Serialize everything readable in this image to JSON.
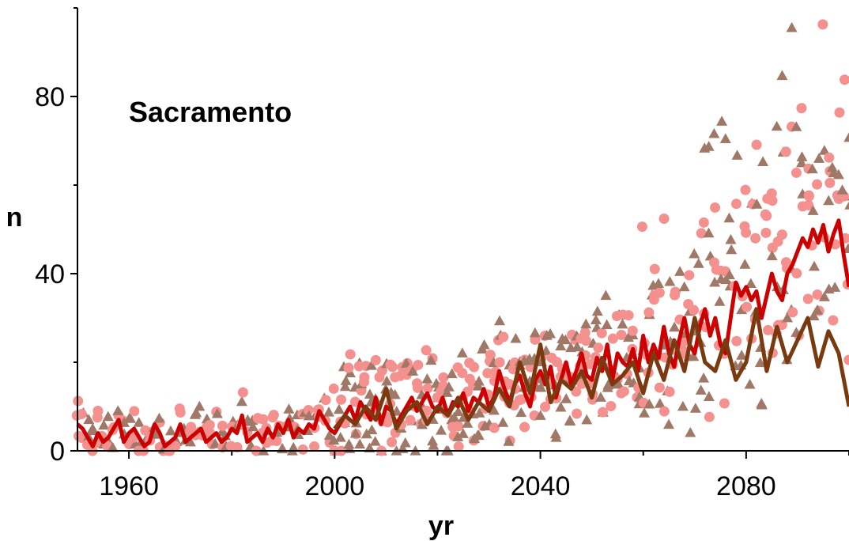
{
  "chart_data": {
    "type": "scatter",
    "title": "Sacramento",
    "xlabel": "yr",
    "ylabel": "n",
    "xlim": [
      1950,
      2100
    ],
    "ylim": [
      0,
      100
    ],
    "x_ticks": [
      1960,
      2000,
      2040,
      2080
    ],
    "y_ticks": [
      0,
      40,
      80
    ],
    "grid": false,
    "colors": {
      "scatter_pink": "#f4908e",
      "scatter_brown": "#a07868",
      "line_red": "#cc0000",
      "line_brown": "#7a3a10"
    },
    "series": [
      {
        "kind": "line",
        "color_key": "line_red",
        "points": [
          [
            1950,
            6
          ],
          [
            1951,
            5
          ],
          [
            1952,
            3
          ],
          [
            1953,
            1
          ],
          [
            1954,
            4
          ],
          [
            1955,
            2
          ],
          [
            1956,
            3
          ],
          [
            1957,
            5
          ],
          [
            1958,
            7
          ],
          [
            1959,
            2
          ],
          [
            1960,
            4
          ],
          [
            1961,
            5
          ],
          [
            1962,
            3
          ],
          [
            1963,
            1
          ],
          [
            1964,
            2
          ],
          [
            1965,
            6
          ],
          [
            1966,
            4
          ],
          [
            1967,
            1
          ],
          [
            1968,
            2
          ],
          [
            1969,
            3
          ],
          [
            1970,
            6
          ],
          [
            1971,
            2
          ],
          [
            1972,
            3
          ],
          [
            1973,
            4
          ],
          [
            1974,
            5
          ],
          [
            1975,
            2
          ],
          [
            1976,
            3
          ],
          [
            1977,
            4
          ],
          [
            1978,
            2
          ],
          [
            1979,
            3
          ],
          [
            1980,
            5
          ],
          [
            1981,
            4
          ],
          [
            1982,
            8
          ],
          [
            1983,
            2
          ],
          [
            1984,
            3
          ],
          [
            1985,
            4
          ],
          [
            1986,
            2
          ],
          [
            1987,
            5
          ],
          [
            1988,
            3
          ],
          [
            1989,
            6
          ],
          [
            1990,
            4
          ],
          [
            1991,
            7
          ],
          [
            1992,
            3
          ],
          [
            1993,
            5
          ],
          [
            1994,
            4
          ],
          [
            1995,
            6
          ],
          [
            1996,
            5
          ],
          [
            1997,
            9
          ],
          [
            1998,
            7
          ],
          [
            1999,
            5
          ],
          [
            2000,
            4
          ],
          [
            2001,
            6
          ],
          [
            2002,
            8
          ],
          [
            2003,
            10
          ],
          [
            2004,
            7
          ],
          [
            2005,
            11
          ],
          [
            2006,
            9
          ],
          [
            2007,
            7
          ],
          [
            2008,
            12
          ],
          [
            2009,
            6
          ],
          [
            2010,
            10
          ],
          [
            2011,
            9
          ],
          [
            2012,
            6
          ],
          [
            2013,
            8
          ],
          [
            2014,
            10
          ],
          [
            2015,
            12
          ],
          [
            2016,
            9
          ],
          [
            2017,
            11
          ],
          [
            2018,
            13
          ],
          [
            2019,
            10
          ],
          [
            2020,
            9
          ],
          [
            2021,
            12
          ],
          [
            2022,
            8
          ],
          [
            2023,
            11
          ],
          [
            2024,
            10
          ],
          [
            2025,
            13
          ],
          [
            2026,
            9
          ],
          [
            2027,
            12
          ],
          [
            2028,
            11
          ],
          [
            2029,
            14
          ],
          [
            2030,
            10
          ],
          [
            2031,
            12
          ],
          [
            2032,
            18
          ],
          [
            2033,
            14
          ],
          [
            2034,
            11
          ],
          [
            2035,
            15
          ],
          [
            2036,
            17
          ],
          [
            2037,
            13
          ],
          [
            2038,
            10
          ],
          [
            2039,
            16
          ],
          [
            2040,
            18
          ],
          [
            2041,
            15
          ],
          [
            2042,
            19
          ],
          [
            2043,
            12
          ],
          [
            2044,
            16
          ],
          [
            2045,
            20
          ],
          [
            2046,
            15
          ],
          [
            2047,
            18
          ],
          [
            2048,
            22
          ],
          [
            2049,
            17
          ],
          [
            2050,
            16
          ],
          [
            2051,
            21
          ],
          [
            2052,
            18
          ],
          [
            2053,
            24
          ],
          [
            2054,
            16
          ],
          [
            2055,
            22
          ],
          [
            2056,
            20
          ],
          [
            2057,
            19
          ],
          [
            2058,
            23
          ],
          [
            2059,
            18
          ],
          [
            2060,
            26
          ],
          [
            2061,
            20
          ],
          [
            2062,
            24
          ],
          [
            2063,
            21
          ],
          [
            2064,
            28
          ],
          [
            2065,
            22
          ],
          [
            2066,
            19
          ],
          [
            2067,
            25
          ],
          [
            2068,
            30
          ],
          [
            2069,
            24
          ],
          [
            2070,
            22
          ],
          [
            2071,
            28
          ],
          [
            2072,
            32
          ],
          [
            2073,
            26
          ],
          [
            2074,
            30
          ],
          [
            2075,
            24
          ],
          [
            2076,
            22
          ],
          [
            2077,
            30
          ],
          [
            2078,
            38
          ],
          [
            2079,
            35
          ],
          [
            2080,
            37
          ],
          [
            2081,
            34
          ],
          [
            2082,
            36
          ],
          [
            2083,
            30
          ],
          [
            2084,
            35
          ],
          [
            2085,
            40
          ],
          [
            2086,
            36
          ],
          [
            2087,
            34
          ],
          [
            2088,
            40
          ],
          [
            2089,
            42
          ],
          [
            2090,
            45
          ],
          [
            2091,
            48
          ],
          [
            2092,
            46
          ],
          [
            2093,
            50
          ],
          [
            2094,
            47
          ],
          [
            2095,
            51
          ],
          [
            2096,
            45
          ],
          [
            2097,
            49
          ],
          [
            2098,
            52
          ],
          [
            2099,
            44
          ],
          [
            2100,
            37
          ]
        ]
      },
      {
        "kind": "line",
        "color_key": "line_brown",
        "points": [
          [
            2000,
            5
          ],
          [
            2002,
            8
          ],
          [
            2004,
            6
          ],
          [
            2006,
            10
          ],
          [
            2008,
            7
          ],
          [
            2010,
            14
          ],
          [
            2012,
            5
          ],
          [
            2014,
            9
          ],
          [
            2016,
            11
          ],
          [
            2018,
            6
          ],
          [
            2020,
            10
          ],
          [
            2022,
            8
          ],
          [
            2024,
            12
          ],
          [
            2026,
            7
          ],
          [
            2028,
            11
          ],
          [
            2030,
            9
          ],
          [
            2032,
            14
          ],
          [
            2034,
            10
          ],
          [
            2036,
            20
          ],
          [
            2038,
            13
          ],
          [
            2040,
            24
          ],
          [
            2042,
            11
          ],
          [
            2044,
            16
          ],
          [
            2046,
            14
          ],
          [
            2048,
            18
          ],
          [
            2050,
            12
          ],
          [
            2052,
            21
          ],
          [
            2054,
            15
          ],
          [
            2056,
            17
          ],
          [
            2058,
            20
          ],
          [
            2060,
            13
          ],
          [
            2062,
            22
          ],
          [
            2064,
            16
          ],
          [
            2066,
            25
          ],
          [
            2068,
            18
          ],
          [
            2070,
            30
          ],
          [
            2072,
            20
          ],
          [
            2074,
            18
          ],
          [
            2076,
            25
          ],
          [
            2078,
            16
          ],
          [
            2080,
            20
          ],
          [
            2082,
            32
          ],
          [
            2084,
            18
          ],
          [
            2086,
            28
          ],
          [
            2088,
            20
          ],
          [
            2090,
            25
          ],
          [
            2092,
            30
          ],
          [
            2094,
            19
          ],
          [
            2096,
            27
          ],
          [
            2098,
            22
          ],
          [
            2100,
            10
          ]
        ]
      }
    ]
  }
}
